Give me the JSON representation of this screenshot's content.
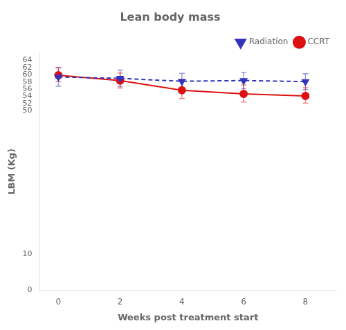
{
  "chart_data": {
    "type": "line",
    "title": "Lean body mass",
    "xlabel": "Weeks post treatment start",
    "ylabel": "LBM (Kg)",
    "x": [
      0,
      2,
      4,
      6,
      8
    ],
    "series": [
      {
        "name": "Radiation",
        "color": "#3333BB",
        "marker": "triangle_down",
        "line_style": "dashed",
        "values": [
          59.4,
          59.0,
          58.2,
          58.4,
          58.1
        ],
        "error": [
          2.6,
          2.3,
          2.2,
          2.3,
          2.2
        ]
      },
      {
        "name": "CCRT",
        "color": "#DD1111",
        "marker": "circle",
        "line_style": "solid",
        "values": [
          59.9,
          58.4,
          55.7,
          54.7,
          54.1
        ],
        "error_lower": [
          1.8,
          2.1,
          2.3,
          2.3,
          2.0
        ],
        "error_upper": [
          2.1,
          2.1,
          2.8,
          2.5,
          2.3
        ]
      }
    ],
    "xlim": [
      -0.6,
      9.0
    ],
    "xticks": [
      0,
      2,
      4,
      6,
      8
    ],
    "ylim": [
      0,
      66
    ],
    "yticks": [
      0,
      10,
      50,
      52,
      54,
      56,
      58,
      60,
      62,
      64
    ],
    "grid": false,
    "legend": "upper right"
  }
}
